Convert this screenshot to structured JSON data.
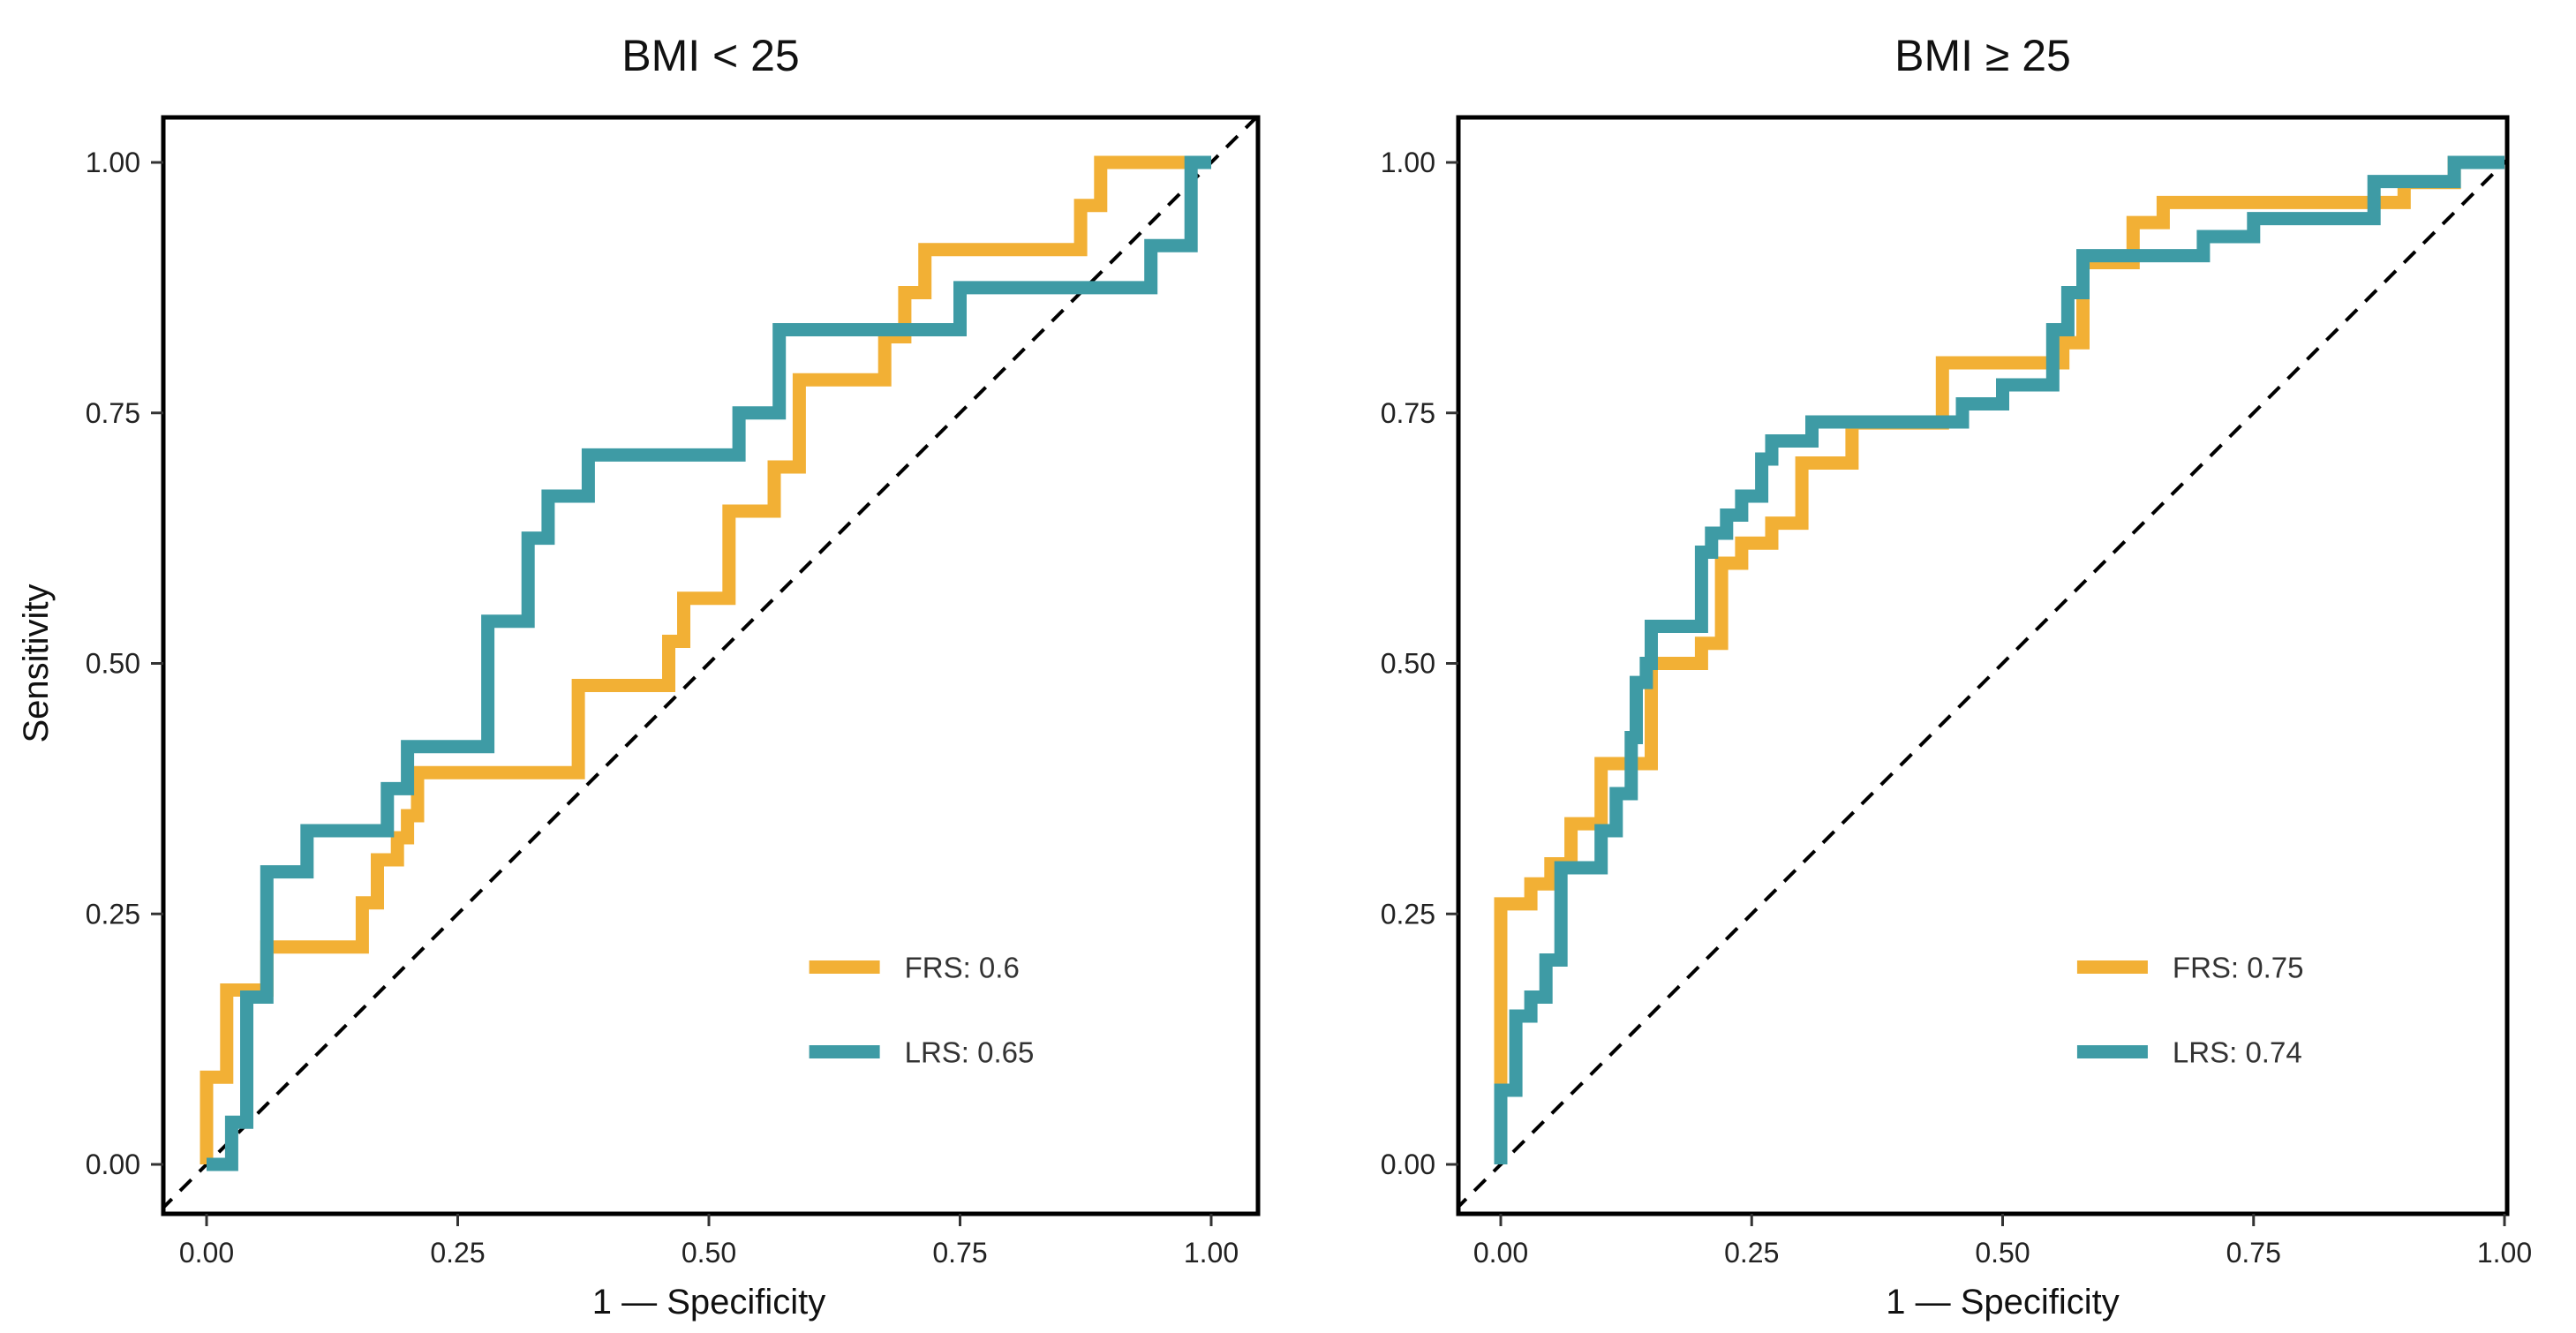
{
  "chart_data": [
    {
      "type": "line",
      "subtype": "roc",
      "title": "BMI < 25",
      "xlabel": "1 — Specificity",
      "ylabel": "Sensitivity",
      "xlim": [
        0,
        1
      ],
      "ylim": [
        0,
        1
      ],
      "xticks": [
        "0.00",
        "0.25",
        "0.50",
        "0.75",
        "1.00"
      ],
      "yticks": [
        "0.00",
        "0.25",
        "0.50",
        "0.75",
        "1.00"
      ],
      "diagonal": true,
      "legend_position": "bottom-right",
      "series": [
        {
          "name": "FRS",
          "auc": "0.6",
          "legend_label": "FRS: 0.6",
          "color": "#F2B035",
          "points": [
            [
              0,
              0
            ],
            [
              0,
              0.087
            ],
            [
              0.02,
              0.087
            ],
            [
              0.02,
              0.174
            ],
            [
              0.06,
              0.174
            ],
            [
              0.06,
              0.217
            ],
            [
              0.155,
              0.217
            ],
            [
              0.155,
              0.261
            ],
            [
              0.17,
              0.261
            ],
            [
              0.17,
              0.304
            ],
            [
              0.19,
              0.304
            ],
            [
              0.19,
              0.326
            ],
            [
              0.2,
              0.326
            ],
            [
              0.2,
              0.348
            ],
            [
              0.21,
              0.348
            ],
            [
              0.21,
              0.391
            ],
            [
              0.37,
              0.391
            ],
            [
              0.37,
              0.478
            ],
            [
              0.46,
              0.478
            ],
            [
              0.46,
              0.522
            ],
            [
              0.475,
              0.522
            ],
            [
              0.475,
              0.565
            ],
            [
              0.52,
              0.565
            ],
            [
              0.52,
              0.652
            ],
            [
              0.565,
              0.652
            ],
            [
              0.565,
              0.696
            ],
            [
              0.59,
              0.696
            ],
            [
              0.59,
              0.783
            ],
            [
              0.675,
              0.783
            ],
            [
              0.675,
              0.826
            ],
            [
              0.695,
              0.826
            ],
            [
              0.695,
              0.87
            ],
            [
              0.715,
              0.87
            ],
            [
              0.715,
              0.913
            ],
            [
              0.87,
              0.913
            ],
            [
              0.87,
              0.957
            ],
            [
              0.89,
              0.957
            ],
            [
              0.89,
              1
            ],
            [
              1,
              1
            ]
          ]
        },
        {
          "name": "LRS",
          "auc": "0.65",
          "legend_label": "LRS: 0.65",
          "color": "#3E9BA5",
          "points": [
            [
              0,
              0
            ],
            [
              0.025,
              0
            ],
            [
              0.025,
              0.042
            ],
            [
              0.04,
              0.042
            ],
            [
              0.04,
              0.167
            ],
            [
              0.06,
              0.167
            ],
            [
              0.06,
              0.292
            ],
            [
              0.1,
              0.292
            ],
            [
              0.1,
              0.333
            ],
            [
              0.18,
              0.333
            ],
            [
              0.18,
              0.375
            ],
            [
              0.2,
              0.375
            ],
            [
              0.2,
              0.417
            ],
            [
              0.28,
              0.417
            ],
            [
              0.28,
              0.542
            ],
            [
              0.32,
              0.542
            ],
            [
              0.32,
              0.625
            ],
            [
              0.34,
              0.625
            ],
            [
              0.34,
              0.667
            ],
            [
              0.38,
              0.667
            ],
            [
              0.38,
              0.708
            ],
            [
              0.53,
              0.708
            ],
            [
              0.53,
              0.75
            ],
            [
              0.57,
              0.75
            ],
            [
              0.57,
              0.833
            ],
            [
              0.75,
              0.833
            ],
            [
              0.75,
              0.875
            ],
            [
              0.94,
              0.875
            ],
            [
              0.94,
              0.917
            ],
            [
              0.98,
              0.917
            ],
            [
              0.98,
              1
            ],
            [
              1,
              1
            ]
          ]
        }
      ]
    },
    {
      "type": "line",
      "subtype": "roc",
      "title": "BMI ≥ 25",
      "xlabel": "1 — Specificity",
      "ylabel": "",
      "xlim": [
        0,
        1
      ],
      "ylim": [
        0,
        1
      ],
      "xticks": [
        "0.00",
        "0.25",
        "0.50",
        "0.75",
        "1.00"
      ],
      "yticks": [
        "0.00",
        "0.25",
        "0.50",
        "0.75",
        "1.00"
      ],
      "diagonal": true,
      "legend_position": "bottom-right",
      "series": [
        {
          "name": "FRS",
          "auc": "0.75",
          "legend_label": "FRS: 0.75",
          "color": "#F2B035",
          "points": [
            [
              0,
              0
            ],
            [
              0,
              0.26
            ],
            [
              0.03,
              0.26
            ],
            [
              0.03,
              0.28
            ],
            [
              0.05,
              0.28
            ],
            [
              0.05,
              0.3
            ],
            [
              0.07,
              0.3
            ],
            [
              0.07,
              0.34
            ],
            [
              0.1,
              0.34
            ],
            [
              0.1,
              0.4
            ],
            [
              0.15,
              0.4
            ],
            [
              0.15,
              0.5
            ],
            [
              0.2,
              0.5
            ],
            [
              0.2,
              0.52
            ],
            [
              0.22,
              0.52
            ],
            [
              0.22,
              0.6
            ],
            [
              0.24,
              0.6
            ],
            [
              0.24,
              0.62
            ],
            [
              0.27,
              0.62
            ],
            [
              0.27,
              0.64
            ],
            [
              0.3,
              0.64
            ],
            [
              0.3,
              0.7
            ],
            [
              0.35,
              0.7
            ],
            [
              0.35,
              0.74
            ],
            [
              0.44,
              0.74
            ],
            [
              0.44,
              0.8
            ],
            [
              0.56,
              0.8
            ],
            [
              0.56,
              0.82
            ],
            [
              0.58,
              0.82
            ],
            [
              0.58,
              0.9
            ],
            [
              0.63,
              0.9
            ],
            [
              0.63,
              0.94
            ],
            [
              0.66,
              0.94
            ],
            [
              0.66,
              0.96
            ],
            [
              0.9,
              0.96
            ],
            [
              0.9,
              0.98
            ],
            [
              0.95,
              0.98
            ],
            [
              0.95,
              1
            ],
            [
              1,
              1
            ]
          ]
        },
        {
          "name": "LRS",
          "auc": "0.74",
          "legend_label": "LRS: 0.74",
          "color": "#3E9BA5",
          "points": [
            [
              0,
              0
            ],
            [
              0,
              0.074
            ],
            [
              0.015,
              0.074
            ],
            [
              0.015,
              0.148
            ],
            [
              0.03,
              0.148
            ],
            [
              0.03,
              0.167
            ],
            [
              0.045,
              0.167
            ],
            [
              0.045,
              0.204
            ],
            [
              0.06,
              0.204
            ],
            [
              0.06,
              0.296
            ],
            [
              0.1,
              0.296
            ],
            [
              0.1,
              0.333
            ],
            [
              0.115,
              0.333
            ],
            [
              0.115,
              0.37
            ],
            [
              0.13,
              0.37
            ],
            [
              0.13,
              0.426
            ],
            [
              0.135,
              0.426
            ],
            [
              0.135,
              0.481
            ],
            [
              0.145,
              0.481
            ],
            [
              0.145,
              0.5
            ],
            [
              0.15,
              0.5
            ],
            [
              0.15,
              0.537
            ],
            [
              0.2,
              0.537
            ],
            [
              0.2,
              0.611
            ],
            [
              0.21,
              0.611
            ],
            [
              0.21,
              0.63
            ],
            [
              0.225,
              0.63
            ],
            [
              0.225,
              0.648
            ],
            [
              0.24,
              0.648
            ],
            [
              0.24,
              0.667
            ],
            [
              0.26,
              0.667
            ],
            [
              0.26,
              0.704
            ],
            [
              0.27,
              0.704
            ],
            [
              0.27,
              0.722
            ],
            [
              0.31,
              0.722
            ],
            [
              0.31,
              0.741
            ],
            [
              0.46,
              0.741
            ],
            [
              0.46,
              0.759
            ],
            [
              0.5,
              0.759
            ],
            [
              0.5,
              0.778
            ],
            [
              0.55,
              0.778
            ],
            [
              0.55,
              0.833
            ],
            [
              0.565,
              0.833
            ],
            [
              0.565,
              0.87
            ],
            [
              0.58,
              0.87
            ],
            [
              0.58,
              0.907
            ],
            [
              0.7,
              0.907
            ],
            [
              0.7,
              0.926
            ],
            [
              0.75,
              0.926
            ],
            [
              0.75,
              0.944
            ],
            [
              0.87,
              0.944
            ],
            [
              0.87,
              0.981
            ],
            [
              0.95,
              0.981
            ],
            [
              0.95,
              1
            ],
            [
              1,
              1
            ]
          ]
        }
      ]
    }
  ]
}
